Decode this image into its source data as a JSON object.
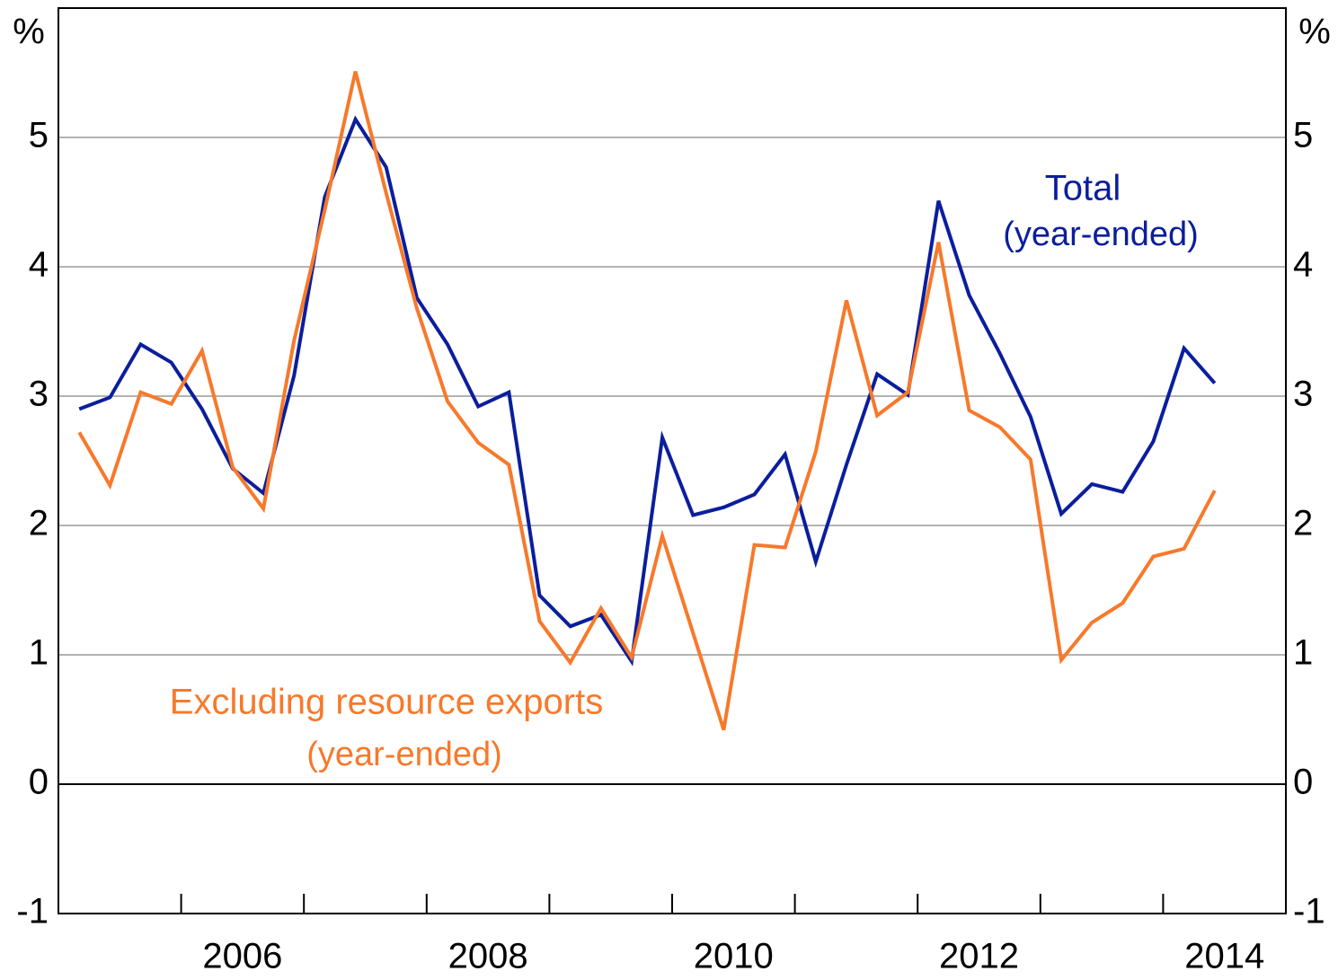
{
  "chart_data": {
    "type": "line",
    "y_unit_left": "%",
    "y_unit_right": "%",
    "x": [
      2005.17,
      2005.42,
      2005.67,
      2005.92,
      2006.17,
      2006.42,
      2006.67,
      2006.92,
      2007.17,
      2007.42,
      2007.67,
      2007.92,
      2008.17,
      2008.42,
      2008.67,
      2008.92,
      2009.17,
      2009.42,
      2009.67,
      2009.92,
      2010.17,
      2010.42,
      2010.67,
      2010.92,
      2011.17,
      2011.42,
      2011.67,
      2011.92,
      2012.17,
      2012.42,
      2012.67,
      2012.92,
      2013.17,
      2013.42,
      2013.67,
      2013.92,
      2014.17,
      2014.42
    ],
    "series": [
      {
        "name": "Total",
        "note": "(year-ended)",
        "color": "#0b1e9c",
        "values": [
          2.9,
          2.99,
          3.4,
          3.26,
          2.9,
          2.44,
          2.25,
          3.16,
          4.54,
          5.14,
          4.77,
          3.76,
          3.4,
          2.92,
          3.03,
          1.46,
          1.22,
          1.31,
          0.95,
          2.68,
          2.08,
          2.14,
          2.24,
          2.55,
          1.72,
          2.47,
          3.17,
          3.01,
          4.51,
          3.78,
          3.33,
          2.84,
          2.09,
          2.32,
          2.26,
          2.65,
          3.37,
          3.1
        ]
      },
      {
        "name": "Excluding resource exports",
        "note": "(year-ended)",
        "color": "#f7792b",
        "values": [
          2.72,
          2.31,
          3.03,
          2.94,
          3.35,
          2.45,
          2.13,
          3.43,
          4.44,
          5.51,
          4.57,
          3.68,
          2.96,
          2.64,
          2.47,
          1.26,
          0.94,
          1.36,
          0.98,
          1.92,
          1.17,
          0.42,
          1.85,
          1.83,
          2.57,
          3.74,
          2.85,
          3.03,
          4.19,
          2.89,
          2.76,
          2.51,
          0.96,
          1.25,
          1.4,
          1.76,
          1.82,
          2.27
        ]
      }
    ],
    "xlim": [
      2005,
      2015
    ],
    "xticks": [
      2006,
      2007,
      2008,
      2009,
      2010,
      2011,
      2012,
      2013,
      2014
    ],
    "xlabels": [
      {
        "value": 2006.5,
        "label": "2006"
      },
      {
        "value": 2008.5,
        "label": "2008"
      },
      {
        "value": 2010.5,
        "label": "2010"
      },
      {
        "value": 2012.5,
        "label": "2012"
      },
      {
        "value": 2014.5,
        "label": "2014"
      }
    ],
    "ylim": [
      -1,
      6
    ],
    "yticks": [
      -1,
      0,
      1,
      2,
      3,
      4,
      5
    ],
    "grid": true
  }
}
